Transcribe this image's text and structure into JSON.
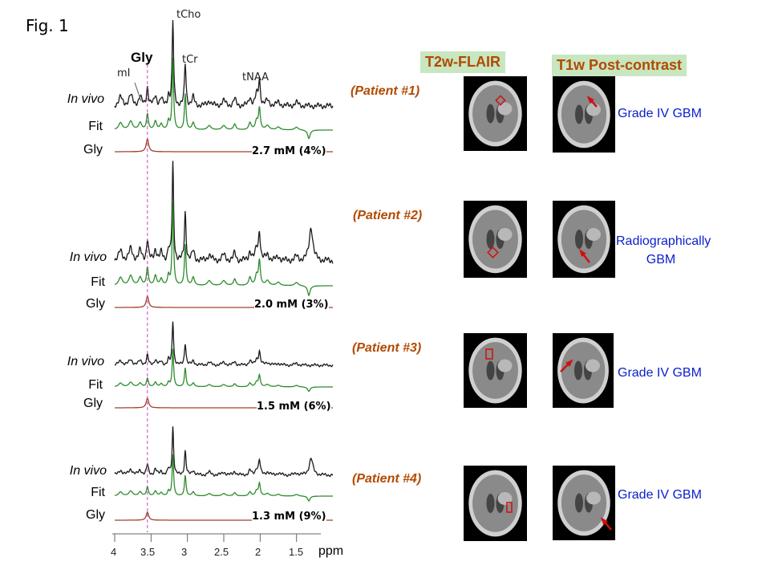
{
  "figure": {
    "title": "Fig. 1"
  },
  "peaks": {
    "gly": "Gly",
    "mi": "mI",
    "tcho": "tCho",
    "tcr": "tCr",
    "tnaa": "tNAA"
  },
  "row_labels": {
    "in_vivo": "In vivo",
    "fit": "Fit",
    "gly": "Gly"
  },
  "colors": {
    "in_vivo": "#1a1a1a",
    "fit": "#2e8b2e",
    "gly": "#a0422a",
    "dashed_line": "#cc44cc",
    "roi": "#d01010",
    "arrow": "#d01010",
    "header_bg": "#c8e6c0",
    "patient_text": "#b24a00",
    "grade_text": "#0a1ecc"
  },
  "headers": {
    "flair": "T2w-FLAIR",
    "t1w": "T1w Post-contrast"
  },
  "patients": [
    {
      "label": "(Patient #1)",
      "gly_conc": "2.7 mM (4%)",
      "diagnosis": "Grade IV GBM"
    },
    {
      "label": "(Patient #2)",
      "gly_conc": "2.0 mM (3%)",
      "diagnosis": "Radiographically GBM"
    },
    {
      "label": "(Patient #3)",
      "gly_conc": "1.5 mM (6%)",
      "diagnosis": "Grade IV GBM"
    },
    {
      "label": "(Patient #4)",
      "gly_conc": "1.3 mM (9%)",
      "diagnosis": "Grade IV GBM"
    }
  ],
  "axis": {
    "ticks": [
      4,
      3.5,
      3,
      2.5,
      2,
      1.5
    ],
    "tick_labels": [
      "4",
      "3.5",
      "3",
      "2.5",
      "2",
      "1.5"
    ],
    "unit": "ppm"
  },
  "chart_data": {
    "type": "line",
    "xlabel": "ppm",
    "x_reversed": true,
    "xlim": [
      4.0,
      1.0
    ],
    "reference_line_ppm": 3.55,
    "peak_positions_ppm": {
      "mI": 3.56,
      "Gly": 3.55,
      "tCho": 3.2,
      "tCr": 3.03,
      "tNAA": 2.01
    },
    "series": [
      {
        "name": "In vivo"
      },
      {
        "name": "Fit"
      },
      {
        "name": "Gly"
      }
    ]
  }
}
